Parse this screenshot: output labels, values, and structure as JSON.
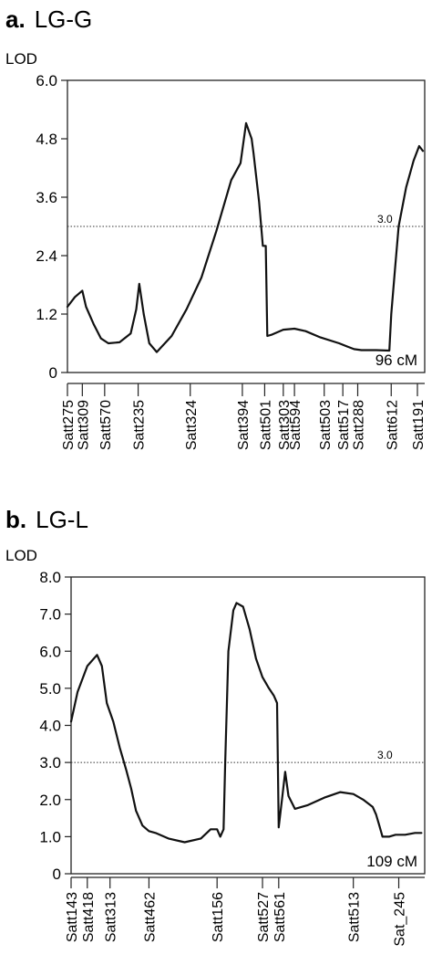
{
  "chart_data": [
    {
      "type": "line",
      "panel": "a.",
      "title": "LG-G",
      "ylabel": "LOD",
      "ylim": [
        0,
        6.0
      ],
      "yticks": [
        "0",
        "1.2",
        "2.4",
        "3.6",
        "4.8",
        "6.0"
      ],
      "threshold": 3.0,
      "threshold_label": "3.0",
      "length_label": "96 cM",
      "xlim": [
        0,
        96
      ],
      "markers": [
        {
          "name": "Satt275",
          "pos": 0
        },
        {
          "name": "Satt309",
          "pos": 4
        },
        {
          "name": "Satt570",
          "pos": 10
        },
        {
          "name": "Satt235",
          "pos": 19
        },
        {
          "name": "Satt324",
          "pos": 33
        },
        {
          "name": "Satt394",
          "pos": 47
        },
        {
          "name": "Satt501",
          "pos": 53
        },
        {
          "name": "Satt303",
          "pos": 58
        },
        {
          "name": "Satt594",
          "pos": 61
        },
        {
          "name": "Satt503",
          "pos": 69
        },
        {
          "name": "Satt517",
          "pos": 74
        },
        {
          "name": "Satt288",
          "pos": 78
        },
        {
          "name": "Satt612",
          "pos": 87
        },
        {
          "name": "Satt191",
          "pos": 97
        }
      ],
      "x": [
        0,
        2,
        4,
        5,
        7,
        9,
        11,
        14,
        17,
        18.5,
        19.3,
        20.5,
        22,
        24,
        28,
        32,
        36,
        40,
        44,
        46.5,
        48,
        49.5,
        50,
        51.5,
        52.5,
        53.3,
        53.7,
        55,
        58,
        61,
        64,
        68,
        73,
        77,
        79,
        83,
        86.5,
        87,
        88,
        89,
        91,
        93,
        94.5,
        95.5
      ],
      "y": [
        1.35,
        1.55,
        1.68,
        1.35,
        1.0,
        0.7,
        0.6,
        0.62,
        0.8,
        1.3,
        1.82,
        1.2,
        0.6,
        0.42,
        0.75,
        1.3,
        1.95,
        2.9,
        3.95,
        4.3,
        5.12,
        4.8,
        4.5,
        3.5,
        2.6,
        2.6,
        0.75,
        0.78,
        0.88,
        0.9,
        0.85,
        0.72,
        0.6,
        0.48,
        0.46,
        0.46,
        0.45,
        1.2,
        2.1,
        3.0,
        3.8,
        4.35,
        4.65,
        4.55
      ]
    },
    {
      "type": "line",
      "panel": "b.",
      "title": "LG-L",
      "ylabel": "LOD",
      "ylim": [
        0,
        8.0
      ],
      "yticks": [
        "0",
        "1.0",
        "2.0",
        "3.0",
        "4.0",
        "5.0",
        "6.0",
        "7.0",
        "8.0"
      ],
      "threshold": 3.0,
      "threshold_label": "3.0",
      "length_label": "109 cM",
      "xlim": [
        0,
        109
      ],
      "markers": [
        {
          "name": "Satt143",
          "pos": 0
        },
        {
          "name": "Satt418",
          "pos": 5
        },
        {
          "name": "Satt313",
          "pos": 12
        },
        {
          "name": "Satt462",
          "pos": 24
        },
        {
          "name": "Satt156",
          "pos": 45
        },
        {
          "name": "Satt527",
          "pos": 59
        },
        {
          "name": "Satt561",
          "pos": 64
        },
        {
          "name": "Satt513",
          "pos": 87
        },
        {
          "name": "Sat_245",
          "pos": 101
        }
      ],
      "x": [
        0,
        2,
        5,
        8,
        9.5,
        11,
        13,
        15,
        17,
        18.5,
        20,
        22,
        24,
        26,
        30,
        35,
        40,
        43,
        45,
        46,
        47,
        47.5,
        48.5,
        50,
        51,
        53,
        55,
        57,
        59,
        61,
        62.5,
        63.5,
        64,
        65,
        66,
        67,
        69,
        73,
        78,
        83,
        87,
        90,
        93,
        94,
        95,
        96,
        98,
        100,
        103,
        106,
        108
      ],
      "y": [
        4.1,
        4.9,
        5.6,
        5.9,
        5.6,
        4.6,
        4.1,
        3.4,
        2.8,
        2.3,
        1.7,
        1.3,
        1.15,
        1.1,
        0.95,
        0.85,
        0.95,
        1.2,
        1.2,
        1.0,
        1.2,
        3.0,
        6.0,
        7.1,
        7.3,
        7.2,
        6.6,
        5.8,
        5.3,
        5.0,
        4.8,
        4.6,
        1.25,
        2.0,
        2.75,
        2.1,
        1.75,
        1.85,
        2.05,
        2.2,
        2.15,
        2.0,
        1.8,
        1.6,
        1.3,
        1.0,
        1.0,
        1.05,
        1.05,
        1.1,
        1.1
      ]
    }
  ]
}
